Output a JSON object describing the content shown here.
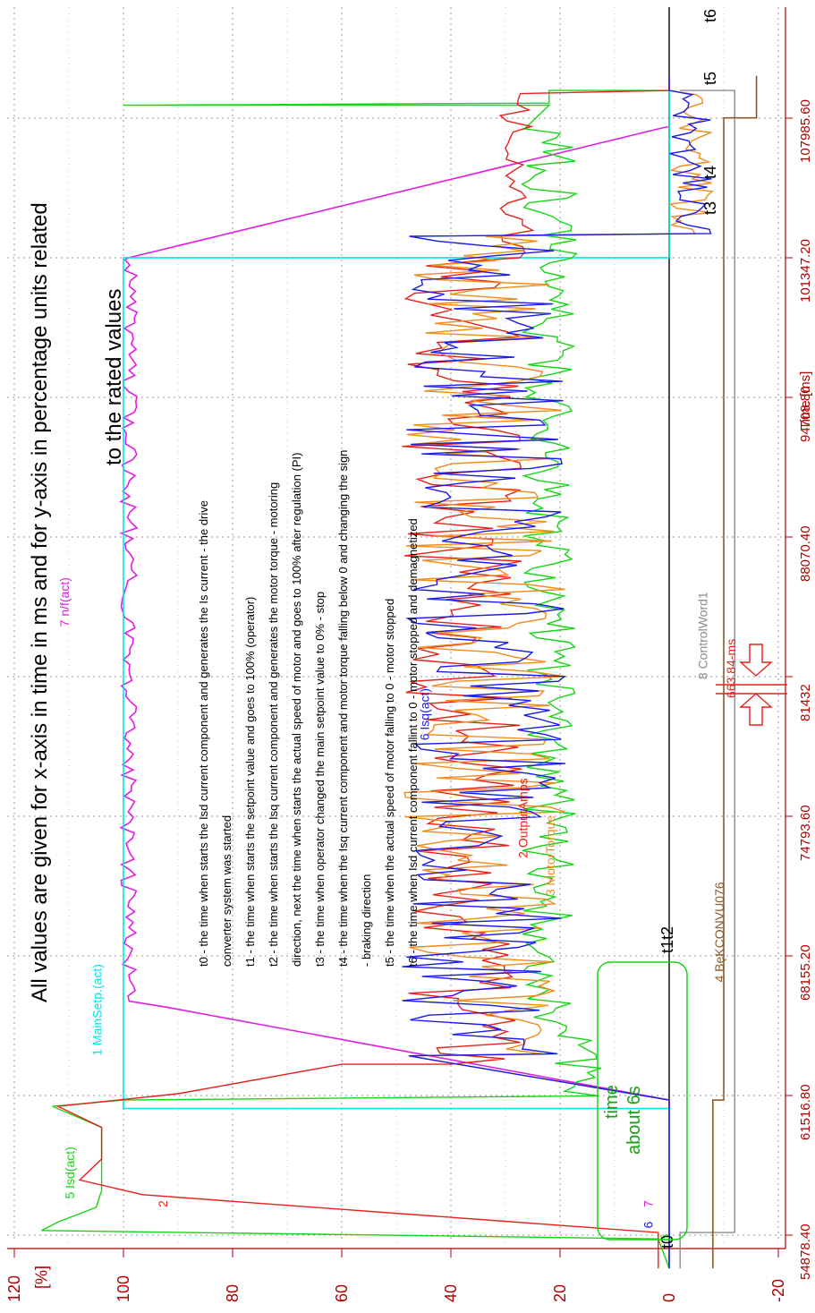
{
  "chart_data": {
    "type": "line",
    "title": "All values are given for x-axis in time in ms and for y-axis in percentage units related",
    "title_line2": "to the rated values",
    "ylabel": "[%]",
    "xlabel": "Time [ms]",
    "ylim": [
      -20,
      120
    ],
    "xlim": [
      53200,
      110000
    ],
    "x_ticks": [
      "54878.40",
      "61516.80",
      "68155.20",
      "74793.60",
      "81432",
      "88070.40",
      "94708.80",
      "101347.20",
      "107985.60"
    ],
    "x_tick_values": [
      54878.4,
      61516.8,
      68155.2,
      74793.6,
      81432,
      88070.4,
      94708.8,
      101347.2,
      107985.6
    ],
    "y_ticks": [
      "120",
      "100",
      "80",
      "60",
      "40",
      "20",
      "0",
      "-20"
    ],
    "y_tick_values": [
      120,
      100,
      80,
      60,
      40,
      20,
      0,
      -20
    ],
    "grid": true,
    "series": [
      {
        "id": "mainsetp",
        "name": "MainSetp.(act)",
        "color": "#00e5ee",
        "label": "1 MainSetp.(act)"
      },
      {
        "id": "outputamps",
        "name": "OutputAmps",
        "color": "#e8201a",
        "label": "2 OutputAmps"
      },
      {
        "id": "motortorque",
        "name": "MotorTorque",
        "color": "#f28a1c",
        "label": "3 MotorTorque"
      },
      {
        "id": "bekconv",
        "name": "BęKCONVU076",
        "color": "#8b5a2b",
        "label": "4 BęKCONVU076"
      },
      {
        "id": "isd",
        "name": "Isd(act)",
        "color": "#16d516",
        "label": "5 Isd(act)"
      },
      {
        "id": "isq",
        "name": "Isq(act)",
        "color": "#1a1aea",
        "label": "6 Isq(act)"
      },
      {
        "id": "nf",
        "name": "n/f(act)",
        "color": "#e21ce2",
        "label": "7 n/f(act)"
      },
      {
        "id": "controlword",
        "name": "ControlWord1",
        "color": "#8c8c8c",
        "label": "8 ControlWord1"
      }
    ],
    "events": [
      {
        "label": "t0",
        "x": 55000
      },
      {
        "label": "t1",
        "x": 60850
      },
      {
        "label": "t2",
        "x": 61300
      },
      {
        "label": "t3",
        "x": 101350
      },
      {
        "label": "t4",
        "x": 102500
      },
      {
        "label": "t5",
        "x": 107600
      },
      {
        "label": "t6",
        "x": 109300
      }
    ],
    "notes": [
      "t0 - the time when starts the Isd current component and generates the Is current - the drive",
      "converter system was started",
      "t1 - the time when starts the setpoint value and goes to 100% (operator)",
      "t2 - the time when starts the Isq current component and generates the motor torque - motoring",
      "direction, next the time when starts the actual speed of motor and goes to 100% after regulation (PI)",
      "t3 - the time when operator changed the main setpoint value to 0% - stop",
      "t4 - the time when the Isq current component and motor torque falling below 0 and changing the sign",
      "- braking direction",
      "t5 - the time when the actual speed of motor falling to 0 - motor stopped",
      "t6 - the time when Isd current component fallint to 0 - motor stopped and demagnetized"
    ],
    "annotations": {
      "time_box_line1": "time",
      "time_box_line2": "about 6s",
      "measure": "663.84-ms",
      "label_2": "2",
      "label_7": "7",
      "label_6": "6",
      "label_5": "5"
    }
  }
}
